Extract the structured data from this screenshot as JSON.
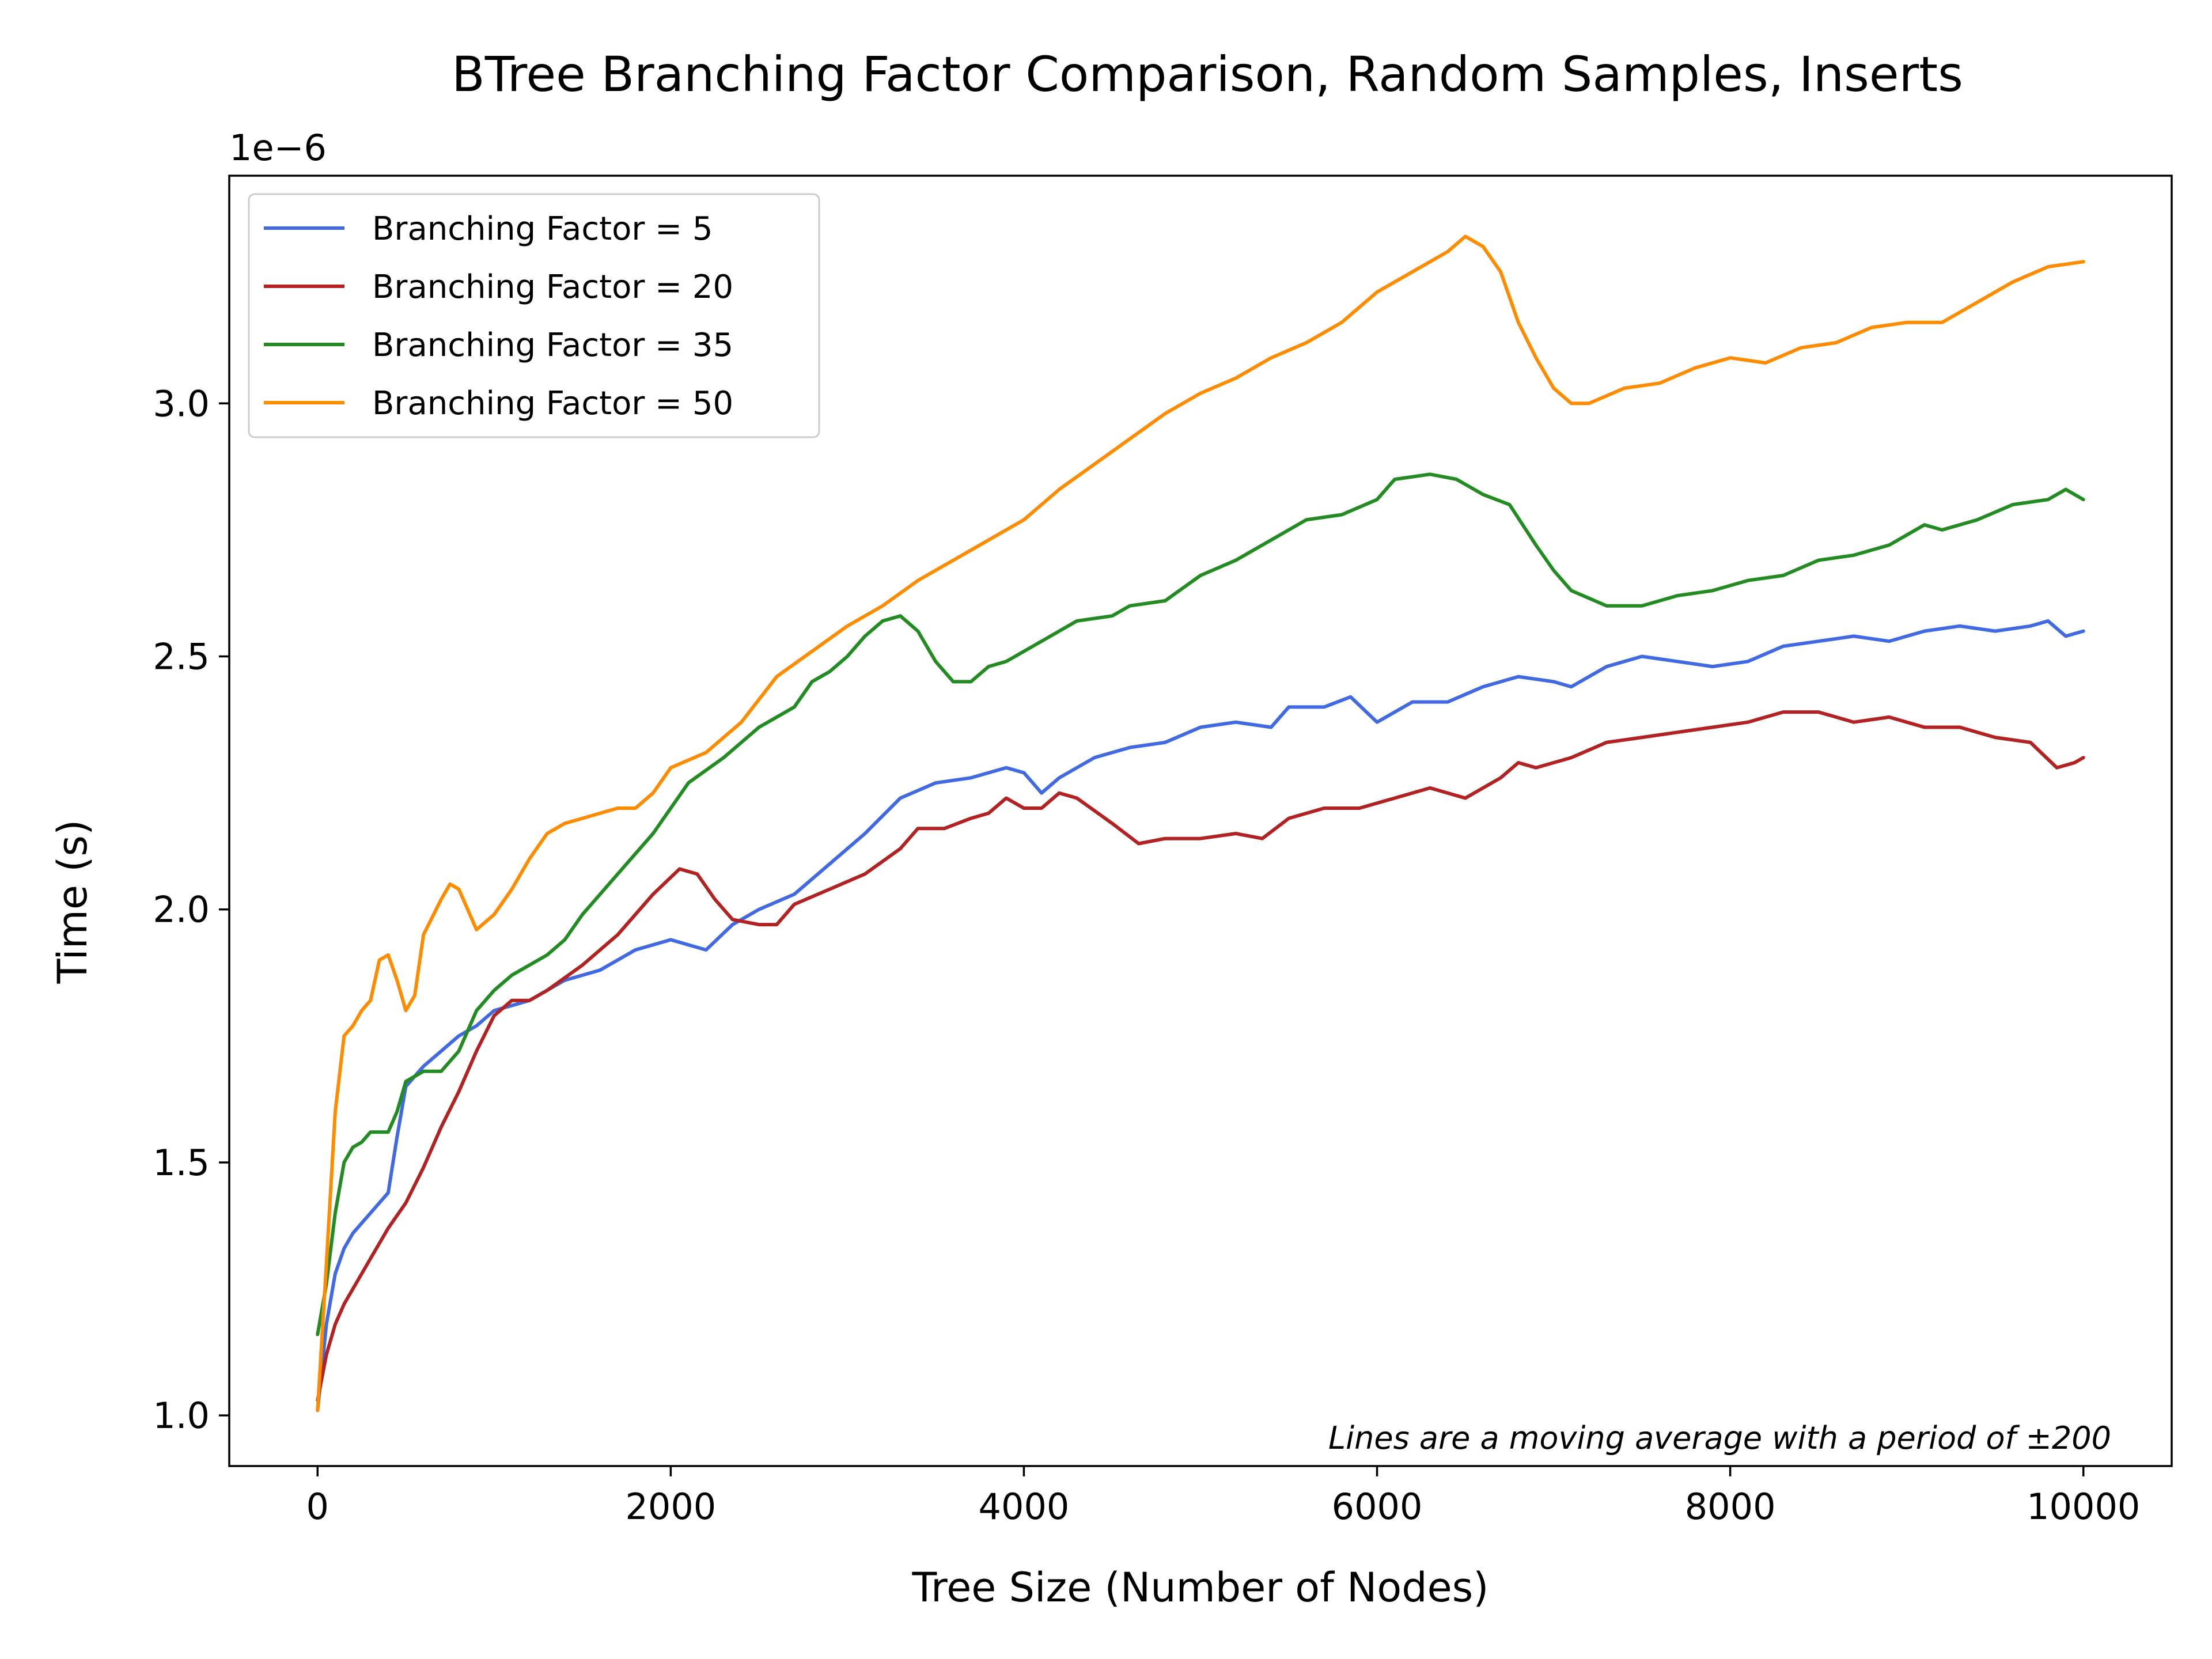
{
  "chart_data": {
    "type": "line",
    "title": "BTree Branching Factor Comparison, Random Samples, Inserts",
    "xlabel": "Tree Size (Number of Nodes)",
    "ylabel": "Time (s)",
    "y_offset_label": "1e−6",
    "annotation": "Lines are a moving average with a period of ±200",
    "xlim": [
      -500,
      10500
    ],
    "ylim": [
      0.9,
      3.45
    ],
    "x_ticks": [
      0,
      2000,
      4000,
      6000,
      8000,
      10000
    ],
    "x_tick_labels": [
      "0",
      "2000",
      "4000",
      "6000",
      "8000",
      "10000"
    ],
    "y_ticks": [
      1.0,
      1.5,
      2.0,
      2.5,
      3.0
    ],
    "y_tick_labels": [
      "1.0",
      "1.5",
      "2.0",
      "2.5",
      "3.0"
    ],
    "grid": false,
    "legend_position": "top-left",
    "series": [
      {
        "name": "Branching Factor = 5",
        "color": "#4169e1",
        "points": [
          [
            0,
            1.01
          ],
          [
            50,
            1.18
          ],
          [
            100,
            1.28
          ],
          [
            150,
            1.33
          ],
          [
            200,
            1.36
          ],
          [
            300,
            1.4
          ],
          [
            400,
            1.44
          ],
          [
            450,
            1.55
          ],
          [
            500,
            1.65
          ],
          [
            600,
            1.69
          ],
          [
            700,
            1.72
          ],
          [
            800,
            1.75
          ],
          [
            900,
            1.77
          ],
          [
            1000,
            1.8
          ],
          [
            1200,
            1.82
          ],
          [
            1400,
            1.86
          ],
          [
            1600,
            1.88
          ],
          [
            1800,
            1.92
          ],
          [
            2000,
            1.94
          ],
          [
            2100,
            1.93
          ],
          [
            2200,
            1.92
          ],
          [
            2350,
            1.97
          ],
          [
            2500,
            2.0
          ],
          [
            2700,
            2.03
          ],
          [
            2900,
            2.09
          ],
          [
            3100,
            2.15
          ],
          [
            3300,
            2.22
          ],
          [
            3500,
            2.25
          ],
          [
            3700,
            2.26
          ],
          [
            3900,
            2.28
          ],
          [
            4000,
            2.27
          ],
          [
            4100,
            2.23
          ],
          [
            4200,
            2.26
          ],
          [
            4400,
            2.3
          ],
          [
            4600,
            2.32
          ],
          [
            4800,
            2.33
          ],
          [
            5000,
            2.36
          ],
          [
            5200,
            2.37
          ],
          [
            5400,
            2.36
          ],
          [
            5500,
            2.4
          ],
          [
            5700,
            2.4
          ],
          [
            5850,
            2.42
          ],
          [
            6000,
            2.37
          ],
          [
            6200,
            2.41
          ],
          [
            6400,
            2.41
          ],
          [
            6600,
            2.44
          ],
          [
            6800,
            2.46
          ],
          [
            7000,
            2.45
          ],
          [
            7100,
            2.44
          ],
          [
            7300,
            2.48
          ],
          [
            7500,
            2.5
          ],
          [
            7700,
            2.49
          ],
          [
            7900,
            2.48
          ],
          [
            8100,
            2.49
          ],
          [
            8300,
            2.52
          ],
          [
            8500,
            2.53
          ],
          [
            8700,
            2.54
          ],
          [
            8900,
            2.53
          ],
          [
            9100,
            2.55
          ],
          [
            9300,
            2.56
          ],
          [
            9500,
            2.55
          ],
          [
            9700,
            2.56
          ],
          [
            9800,
            2.57
          ],
          [
            9900,
            2.54
          ],
          [
            10000,
            2.55
          ]
        ]
      },
      {
        "name": "Branching Factor = 20",
        "color": "#b22222",
        "points": [
          [
            0,
            1.03
          ],
          [
            50,
            1.12
          ],
          [
            100,
            1.18
          ],
          [
            150,
            1.22
          ],
          [
            200,
            1.25
          ],
          [
            300,
            1.31
          ],
          [
            400,
            1.37
          ],
          [
            500,
            1.42
          ],
          [
            600,
            1.49
          ],
          [
            700,
            1.57
          ],
          [
            800,
            1.64
          ],
          [
            900,
            1.72
          ],
          [
            1000,
            1.79
          ],
          [
            1100,
            1.82
          ],
          [
            1200,
            1.82
          ],
          [
            1300,
            1.84
          ],
          [
            1500,
            1.89
          ],
          [
            1700,
            1.95
          ],
          [
            1900,
            2.03
          ],
          [
            2050,
            2.08
          ],
          [
            2150,
            2.07
          ],
          [
            2250,
            2.02
          ],
          [
            2350,
            1.98
          ],
          [
            2500,
            1.97
          ],
          [
            2600,
            1.97
          ],
          [
            2700,
            2.01
          ],
          [
            2900,
            2.04
          ],
          [
            3100,
            2.07
          ],
          [
            3300,
            2.12
          ],
          [
            3400,
            2.16
          ],
          [
            3550,
            2.16
          ],
          [
            3700,
            2.18
          ],
          [
            3800,
            2.19
          ],
          [
            3900,
            2.22
          ],
          [
            4000,
            2.2
          ],
          [
            4100,
            2.2
          ],
          [
            4200,
            2.23
          ],
          [
            4300,
            2.22
          ],
          [
            4500,
            2.17
          ],
          [
            4650,
            2.13
          ],
          [
            4800,
            2.14
          ],
          [
            5000,
            2.14
          ],
          [
            5200,
            2.15
          ],
          [
            5350,
            2.14
          ],
          [
            5500,
            2.18
          ],
          [
            5700,
            2.2
          ],
          [
            5900,
            2.2
          ],
          [
            6100,
            2.22
          ],
          [
            6300,
            2.24
          ],
          [
            6500,
            2.22
          ],
          [
            6700,
            2.26
          ],
          [
            6800,
            2.29
          ],
          [
            6900,
            2.28
          ],
          [
            7100,
            2.3
          ],
          [
            7300,
            2.33
          ],
          [
            7500,
            2.34
          ],
          [
            7700,
            2.35
          ],
          [
            7900,
            2.36
          ],
          [
            8100,
            2.37
          ],
          [
            8300,
            2.39
          ],
          [
            8500,
            2.39
          ],
          [
            8700,
            2.37
          ],
          [
            8900,
            2.38
          ],
          [
            9100,
            2.36
          ],
          [
            9300,
            2.36
          ],
          [
            9500,
            2.34
          ],
          [
            9700,
            2.33
          ],
          [
            9850,
            2.28
          ],
          [
            9950,
            2.29
          ],
          [
            10000,
            2.3
          ]
        ]
      },
      {
        "name": "Branching Factor = 35",
        "color": "#228b22",
        "points": [
          [
            0,
            1.16
          ],
          [
            50,
            1.26
          ],
          [
            100,
            1.4
          ],
          [
            150,
            1.5
          ],
          [
            200,
            1.53
          ],
          [
            250,
            1.54
          ],
          [
            300,
            1.56
          ],
          [
            400,
            1.56
          ],
          [
            450,
            1.6
          ],
          [
            500,
            1.66
          ],
          [
            600,
            1.68
          ],
          [
            700,
            1.68
          ],
          [
            800,
            1.72
          ],
          [
            900,
            1.8
          ],
          [
            1000,
            1.84
          ],
          [
            1100,
            1.87
          ],
          [
            1200,
            1.89
          ],
          [
            1300,
            1.91
          ],
          [
            1400,
            1.94
          ],
          [
            1500,
            1.99
          ],
          [
            1700,
            2.07
          ],
          [
            1900,
            2.15
          ],
          [
            2000,
            2.2
          ],
          [
            2100,
            2.25
          ],
          [
            2300,
            2.3
          ],
          [
            2500,
            2.36
          ],
          [
            2700,
            2.4
          ],
          [
            2800,
            2.45
          ],
          [
            2900,
            2.47
          ],
          [
            3000,
            2.5
          ],
          [
            3100,
            2.54
          ],
          [
            3200,
            2.57
          ],
          [
            3300,
            2.58
          ],
          [
            3400,
            2.55
          ],
          [
            3500,
            2.49
          ],
          [
            3600,
            2.45
          ],
          [
            3700,
            2.45
          ],
          [
            3800,
            2.48
          ],
          [
            3900,
            2.49
          ],
          [
            4000,
            2.51
          ],
          [
            4100,
            2.53
          ],
          [
            4300,
            2.57
          ],
          [
            4500,
            2.58
          ],
          [
            4600,
            2.6
          ],
          [
            4800,
            2.61
          ],
          [
            5000,
            2.66
          ],
          [
            5200,
            2.69
          ],
          [
            5400,
            2.73
          ],
          [
            5600,
            2.77
          ],
          [
            5800,
            2.78
          ],
          [
            6000,
            2.81
          ],
          [
            6100,
            2.85
          ],
          [
            6300,
            2.86
          ],
          [
            6450,
            2.85
          ],
          [
            6600,
            2.82
          ],
          [
            6750,
            2.8
          ],
          [
            6900,
            2.72
          ],
          [
            7000,
            2.67
          ],
          [
            7100,
            2.63
          ],
          [
            7300,
            2.6
          ],
          [
            7500,
            2.6
          ],
          [
            7700,
            2.62
          ],
          [
            7900,
            2.63
          ],
          [
            8100,
            2.65
          ],
          [
            8300,
            2.66
          ],
          [
            8500,
            2.69
          ],
          [
            8700,
            2.7
          ],
          [
            8900,
            2.72
          ],
          [
            9100,
            2.76
          ],
          [
            9200,
            2.75
          ],
          [
            9400,
            2.77
          ],
          [
            9600,
            2.8
          ],
          [
            9800,
            2.81
          ],
          [
            9900,
            2.83
          ],
          [
            10000,
            2.81
          ]
        ]
      },
      {
        "name": "Branching Factor = 50",
        "color": "#ff8c00",
        "points": [
          [
            0,
            1.01
          ],
          [
            50,
            1.3
          ],
          [
            100,
            1.6
          ],
          [
            150,
            1.75
          ],
          [
            200,
            1.77
          ],
          [
            250,
            1.8
          ],
          [
            300,
            1.82
          ],
          [
            350,
            1.9
          ],
          [
            400,
            1.91
          ],
          [
            450,
            1.86
          ],
          [
            500,
            1.8
          ],
          [
            550,
            1.83
          ],
          [
            600,
            1.95
          ],
          [
            700,
            2.02
          ],
          [
            750,
            2.05
          ],
          [
            800,
            2.04
          ],
          [
            850,
            2.0
          ],
          [
            900,
            1.96
          ],
          [
            1000,
            1.99
          ],
          [
            1100,
            2.04
          ],
          [
            1200,
            2.1
          ],
          [
            1300,
            2.15
          ],
          [
            1400,
            2.17
          ],
          [
            1500,
            2.18
          ],
          [
            1600,
            2.19
          ],
          [
            1700,
            2.2
          ],
          [
            1800,
            2.2
          ],
          [
            1900,
            2.23
          ],
          [
            2000,
            2.28
          ],
          [
            2200,
            2.31
          ],
          [
            2400,
            2.37
          ],
          [
            2600,
            2.46
          ],
          [
            2800,
            2.51
          ],
          [
            3000,
            2.56
          ],
          [
            3200,
            2.6
          ],
          [
            3400,
            2.65
          ],
          [
            3600,
            2.69
          ],
          [
            3800,
            2.73
          ],
          [
            4000,
            2.77
          ],
          [
            4200,
            2.83
          ],
          [
            4400,
            2.88
          ],
          [
            4600,
            2.93
          ],
          [
            4800,
            2.98
          ],
          [
            5000,
            3.02
          ],
          [
            5200,
            3.05
          ],
          [
            5400,
            3.09
          ],
          [
            5600,
            3.12
          ],
          [
            5800,
            3.16
          ],
          [
            6000,
            3.22
          ],
          [
            6200,
            3.26
          ],
          [
            6400,
            3.3
          ],
          [
            6500,
            3.33
          ],
          [
            6600,
            3.31
          ],
          [
            6700,
            3.26
          ],
          [
            6800,
            3.16
          ],
          [
            6900,
            3.09
          ],
          [
            7000,
            3.03
          ],
          [
            7100,
            3.0
          ],
          [
            7200,
            3.0
          ],
          [
            7400,
            3.03
          ],
          [
            7600,
            3.04
          ],
          [
            7800,
            3.07
          ],
          [
            8000,
            3.09
          ],
          [
            8200,
            3.08
          ],
          [
            8400,
            3.11
          ],
          [
            8600,
            3.12
          ],
          [
            8800,
            3.15
          ],
          [
            9000,
            3.16
          ],
          [
            9200,
            3.16
          ],
          [
            9400,
            3.2
          ],
          [
            9600,
            3.24
          ],
          [
            9800,
            3.27
          ],
          [
            10000,
            3.28
          ]
        ]
      }
    ]
  }
}
